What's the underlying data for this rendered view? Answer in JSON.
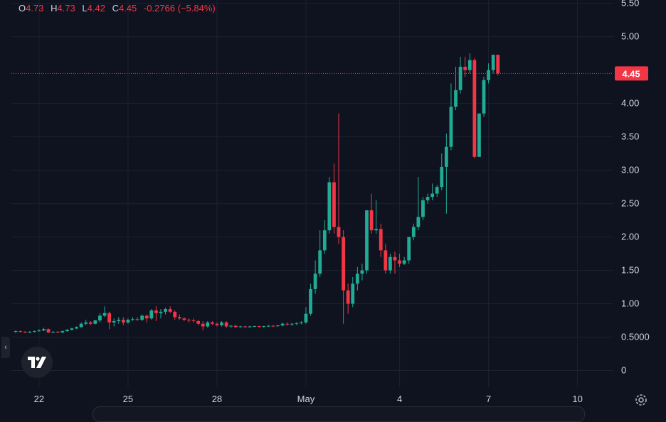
{
  "legend": {
    "o_label": "O",
    "o_value": "4.73",
    "h_label": "H",
    "h_value": "4.73",
    "l_label": "L",
    "l_value": "4.42",
    "c_label": "C",
    "c_value": "4.45",
    "change": "-0.2766 (−5.84%)"
  },
  "colors": {
    "background": "#0f1320",
    "grid": "#1c2030",
    "up": "#22ab94",
    "down": "#f23645",
    "text": "#d1d4dc",
    "price_tag": "#f23645"
  },
  "icons": {
    "logo": "tradingview-logo-icon",
    "settings": "gear-icon",
    "collapse": "chevron-left-icon"
  },
  "chart_data": {
    "type": "candlestick",
    "title": "",
    "xlabel": "",
    "ylabel": "",
    "ylim": [
      -0.25,
      5.55
    ],
    "grid": true,
    "y_ticks": [
      {
        "v": 5.5,
        "label": "5.50"
      },
      {
        "v": 5.0,
        "label": "5.00"
      },
      {
        "v": 4.0,
        "label": "4.00"
      },
      {
        "v": 3.5,
        "label": "3.50"
      },
      {
        "v": 3.0,
        "label": "3.00"
      },
      {
        "v": 2.5,
        "label": "2.50"
      },
      {
        "v": 2.0,
        "label": "2.00"
      },
      {
        "v": 1.5,
        "label": "1.50"
      },
      {
        "v": 1.0,
        "label": "1.00"
      },
      {
        "v": 0.5,
        "label": "0.5000"
      },
      {
        "v": 0.0,
        "label": "0"
      }
    ],
    "x_ticks": [
      {
        "i": 5,
        "label": "22"
      },
      {
        "i": 24,
        "label": "25"
      },
      {
        "i": 43,
        "label": "28"
      },
      {
        "i": 62,
        "label": "May"
      },
      {
        "i": 82,
        "label": "4"
      },
      {
        "i": 101,
        "label": "7"
      },
      {
        "i": 120,
        "label": "10"
      }
    ],
    "last_price": 4.45,
    "last_price_label": "4.45",
    "candles": [
      [
        0.58,
        0.6,
        0.56,
        0.59
      ],
      [
        0.59,
        0.6,
        0.57,
        0.58
      ],
      [
        0.58,
        0.59,
        0.56,
        0.57
      ],
      [
        0.57,
        0.59,
        0.56,
        0.58
      ],
      [
        0.58,
        0.6,
        0.57,
        0.59
      ],
      [
        0.59,
        0.62,
        0.58,
        0.6
      ],
      [
        0.6,
        0.64,
        0.59,
        0.62
      ],
      [
        0.62,
        0.63,
        0.56,
        0.57
      ],
      [
        0.57,
        0.59,
        0.56,
        0.58
      ],
      [
        0.58,
        0.59,
        0.56,
        0.57
      ],
      [
        0.57,
        0.6,
        0.56,
        0.59
      ],
      [
        0.59,
        0.62,
        0.58,
        0.61
      ],
      [
        0.61,
        0.64,
        0.6,
        0.63
      ],
      [
        0.63,
        0.66,
        0.62,
        0.65
      ],
      [
        0.65,
        0.72,
        0.64,
        0.7
      ],
      [
        0.7,
        0.76,
        0.68,
        0.72
      ],
      [
        0.72,
        0.74,
        0.68,
        0.7
      ],
      [
        0.7,
        0.76,
        0.69,
        0.75
      ],
      [
        0.75,
        0.86,
        0.72,
        0.82
      ],
      [
        0.82,
        0.96,
        0.8,
        0.86
      ],
      [
        0.86,
        0.88,
        0.62,
        0.72
      ],
      [
        0.72,
        0.78,
        0.66,
        0.74
      ],
      [
        0.74,
        0.8,
        0.7,
        0.76
      ],
      [
        0.76,
        0.8,
        0.68,
        0.72
      ],
      [
        0.72,
        0.78,
        0.7,
        0.76
      ],
      [
        0.76,
        0.8,
        0.74,
        0.77
      ],
      [
        0.77,
        0.8,
        0.74,
        0.76
      ],
      [
        0.76,
        0.84,
        0.74,
        0.82
      ],
      [
        0.82,
        0.84,
        0.72,
        0.78
      ],
      [
        0.78,
        0.92,
        0.76,
        0.9
      ],
      [
        0.9,
        0.96,
        0.74,
        0.86
      ],
      [
        0.86,
        0.92,
        0.78,
        0.88
      ],
      [
        0.88,
        0.94,
        0.84,
        0.92
      ],
      [
        0.92,
        0.96,
        0.86,
        0.88
      ],
      [
        0.88,
        0.9,
        0.76,
        0.8
      ],
      [
        0.8,
        0.84,
        0.76,
        0.78
      ],
      [
        0.78,
        0.8,
        0.74,
        0.76
      ],
      [
        0.76,
        0.78,
        0.72,
        0.75
      ],
      [
        0.75,
        0.78,
        0.72,
        0.74
      ],
      [
        0.74,
        0.76,
        0.68,
        0.7
      ],
      [
        0.7,
        0.74,
        0.6,
        0.66
      ],
      [
        0.66,
        0.74,
        0.64,
        0.72
      ],
      [
        0.72,
        0.74,
        0.68,
        0.7
      ],
      [
        0.7,
        0.72,
        0.66,
        0.68
      ],
      [
        0.68,
        0.74,
        0.66,
        0.72
      ],
      [
        0.72,
        0.74,
        0.64,
        0.66
      ],
      [
        0.66,
        0.68,
        0.64,
        0.67
      ],
      [
        0.67,
        0.68,
        0.64,
        0.65
      ],
      [
        0.65,
        0.67,
        0.64,
        0.66
      ],
      [
        0.66,
        0.67,
        0.64,
        0.65
      ],
      [
        0.65,
        0.67,
        0.64,
        0.66
      ],
      [
        0.66,
        0.67,
        0.65,
        0.665
      ],
      [
        0.665,
        0.67,
        0.64,
        0.655
      ],
      [
        0.655,
        0.67,
        0.64,
        0.665
      ],
      [
        0.665,
        0.68,
        0.65,
        0.67
      ],
      [
        0.67,
        0.68,
        0.65,
        0.665
      ],
      [
        0.665,
        0.68,
        0.65,
        0.675
      ],
      [
        0.675,
        0.72,
        0.66,
        0.7
      ],
      [
        0.7,
        0.72,
        0.67,
        0.69
      ],
      [
        0.69,
        0.71,
        0.67,
        0.7
      ],
      [
        0.7,
        0.72,
        0.68,
        0.71
      ],
      [
        0.71,
        0.74,
        0.69,
        0.72
      ],
      [
        0.72,
        0.95,
        0.7,
        0.85
      ],
      [
        0.85,
        1.3,
        0.82,
        1.22
      ],
      [
        1.22,
        1.65,
        1.15,
        1.45
      ],
      [
        1.45,
        2.1,
        1.4,
        1.8
      ],
      [
        1.8,
        2.25,
        1.75,
        2.1
      ],
      [
        2.1,
        2.9,
        2.05,
        2.82
      ],
      [
        2.82,
        3.1,
        2.05,
        2.15
      ],
      [
        2.15,
        3.85,
        1.9,
        2.0
      ],
      [
        2.0,
        2.1,
        0.7,
        1.2
      ],
      [
        1.2,
        1.3,
        0.85,
        1.0
      ],
      [
        1.0,
        1.4,
        0.95,
        1.3
      ],
      [
        1.3,
        1.55,
        1.2,
        1.45
      ],
      [
        1.45,
        1.6,
        1.35,
        1.5
      ],
      [
        1.5,
        2.4,
        1.45,
        2.4
      ],
      [
        2.4,
        2.65,
        2.05,
        2.1
      ],
      [
        2.1,
        2.55,
        2.05,
        2.12
      ],
      [
        2.12,
        2.2,
        1.7,
        1.8
      ],
      [
        1.8,
        1.9,
        1.45,
        1.5
      ],
      [
        1.5,
        1.75,
        1.45,
        1.7
      ],
      [
        1.7,
        1.78,
        1.45,
        1.65
      ],
      [
        1.65,
        1.75,
        1.55,
        1.6
      ],
      [
        1.6,
        1.7,
        1.58,
        1.65
      ],
      [
        1.65,
        2.0,
        1.6,
        2.0
      ],
      [
        2.0,
        2.2,
        1.95,
        2.15
      ],
      [
        2.15,
        2.9,
        2.1,
        2.3
      ],
      [
        2.3,
        2.6,
        2.25,
        2.55
      ],
      [
        2.55,
        2.65,
        2.5,
        2.6
      ],
      [
        2.6,
        2.8,
        2.55,
        2.65
      ],
      [
        2.65,
        2.78,
        2.6,
        2.75
      ],
      [
        2.75,
        3.25,
        2.7,
        3.05
      ],
      [
        3.05,
        3.55,
        2.35,
        3.35
      ],
      [
        3.35,
        4.3,
        3.3,
        3.95
      ],
      [
        3.95,
        4.55,
        3.9,
        4.2
      ],
      [
        4.2,
        4.7,
        4.15,
        4.55
      ],
      [
        4.55,
        4.7,
        4.4,
        4.5
      ],
      [
        4.5,
        4.75,
        4.45,
        4.65
      ],
      [
        4.65,
        4.68,
        3.18,
        3.2
      ],
      [
        3.2,
        3.85,
        3.2,
        3.85
      ],
      [
        3.85,
        4.4,
        3.8,
        4.35
      ],
      [
        4.35,
        4.6,
        4.3,
        4.5
      ],
      [
        4.5,
        4.73,
        4.45,
        4.73
      ],
      [
        4.73,
        4.73,
        4.42,
        4.45
      ]
    ]
  }
}
